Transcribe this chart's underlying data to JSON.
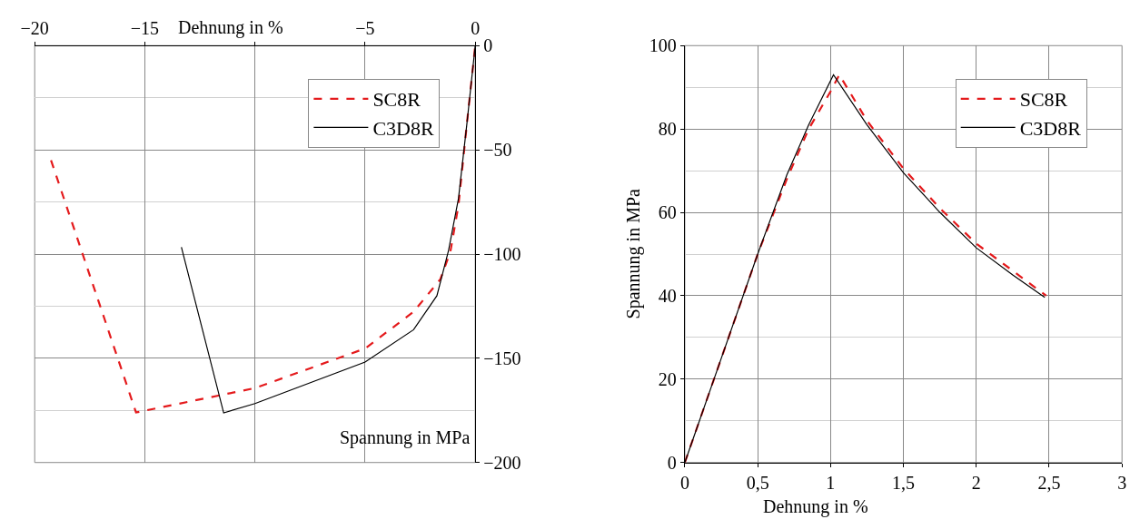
{
  "chart_data": [
    {
      "type": "line",
      "xlabel": "Dehnung in %",
      "ylabel": "Spannung in MPa",
      "xlim": [
        -20,
        0
      ],
      "ylim": [
        -200,
        0
      ],
      "xticks": [
        -20,
        -15,
        {
          "value": -10,
          "label": null
        },
        -5,
        0
      ],
      "yticks": [
        -200,
        -150,
        -100,
        -50,
        0
      ],
      "grid": true,
      "legend": "top right",
      "marker": "none",
      "series": [
        {
          "name": "SC8R",
          "color": "#e41a1c",
          "line_style": "dashed",
          "x": [
            -19.26,
            -15.4,
            -10,
            -5,
            -2.8,
            -1.59,
            -1.13,
            -0.76,
            -0.38,
            0
          ],
          "values": [
            -55,
            -176,
            -164.3,
            -145.3,
            -127.7,
            -112.2,
            -99,
            -76.5,
            -37.6,
            0
          ]
        },
        {
          "name": "C3D8R",
          "color": "#000000",
          "line_style": "solid",
          "x": [
            -13.34,
            -11.42,
            -10,
            -5,
            -2.8,
            -1.74,
            -1.21,
            -0.76,
            -0.38,
            0
          ],
          "values": [
            -96.7,
            -176.2,
            -171.7,
            -151.8,
            -136.3,
            -120,
            -98.2,
            -73.3,
            -37.6,
            0
          ]
        }
      ]
    },
    {
      "type": "line",
      "xlabel": "Dehnung in %",
      "ylabel": "Spannung in MPa",
      "xlim": [
        0,
        3
      ],
      "ylim": [
        0,
        100
      ],
      "xticks": [
        0,
        {
          "value": 0.5,
          "label": "0,5"
        },
        1,
        {
          "value": 1.5,
          "label": "1,5"
        },
        2,
        {
          "value": 2.5,
          "label": "2,5"
        },
        3
      ],
      "yticks": [
        0,
        20,
        40,
        60,
        80,
        100
      ],
      "grid": true,
      "legend": "top right",
      "marker": "none",
      "series": [
        {
          "name": "SC8R",
          "color": "#e41a1c",
          "line_style": "dashed",
          "x": [
            0,
            0.2,
            0.5,
            0.7,
            0.85,
            1.0,
            1.06,
            1.25,
            1.5,
            1.75,
            2.0,
            2.25,
            2.48
          ],
          "values": [
            0,
            20,
            50,
            68,
            80,
            89,
            93,
            82,
            70.5,
            61,
            52.5,
            46,
            40
          ]
        },
        {
          "name": "C3D8R",
          "color": "#000000",
          "line_style": "solid",
          "x": [
            0,
            0.2,
            0.5,
            0.7,
            0.85,
            1.02,
            1.25,
            1.5,
            1.75,
            2.0,
            2.25,
            2.47
          ],
          "values": [
            0,
            20,
            50,
            69,
            81,
            93,
            81,
            69.5,
            60,
            51.5,
            45,
            39.6
          ]
        }
      ]
    }
  ]
}
